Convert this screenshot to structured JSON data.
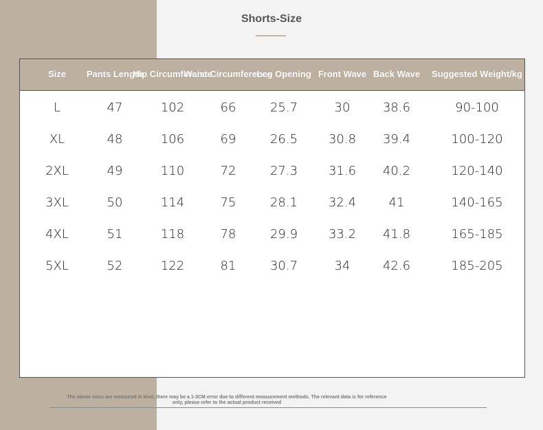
{
  "header": {
    "title": "Shorts-Size"
  },
  "table": {
    "columns": [
      "Size",
      "Pants Length",
      "Hip Circumference",
      "Waist Circumference",
      "Leg Opening",
      "Front Wave",
      "Back Wave",
      "Suggested Weight/kg"
    ],
    "rows": [
      [
        "L",
        "47",
        "102",
        "66",
        "25.7",
        "30",
        "38.6",
        "90-100"
      ],
      [
        "XL",
        "48",
        "106",
        "69",
        "26.5",
        "30.8",
        "39.4",
        "100-120"
      ],
      [
        "2XL",
        "49",
        "110",
        "72",
        "27.3",
        "31.6",
        "40.2",
        "120-140"
      ],
      [
        "3XL",
        "50",
        "114",
        "75",
        "28.1",
        "32.4",
        "41",
        "140-165"
      ],
      [
        "4XL",
        "51",
        "118",
        "78",
        "29.9",
        "33.2",
        "41.8",
        "165-185"
      ],
      [
        "5XL",
        "52",
        "122",
        "81",
        "30.7",
        "34",
        "42.6",
        "185-205"
      ]
    ]
  },
  "footer": {
    "note": "The above sizes are measured in kind, there may be a 1-3CM error due to different measurement methods. The relevant data is for reference only, please refer to the actual product received"
  }
}
